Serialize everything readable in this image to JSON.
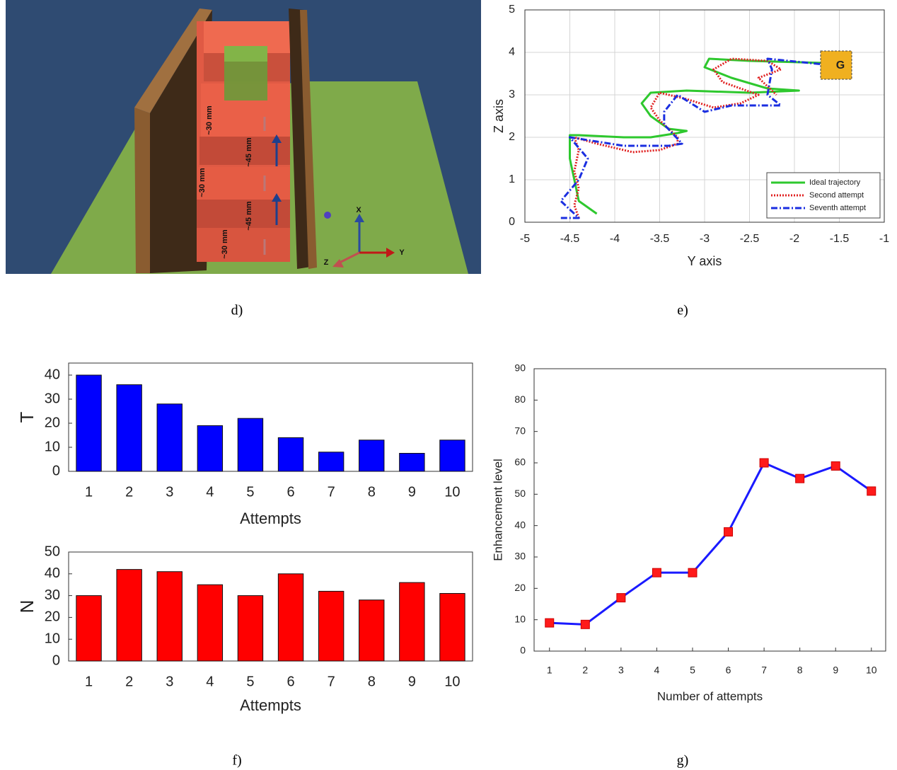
{
  "scene": {
    "dimension_labels": [
      "~30 mm",
      "~45 mm",
      "~30 mm",
      "~45 mm",
      "~30 mm"
    ],
    "axis_labels": [
      "X",
      "Y",
      "Z"
    ]
  },
  "captions": [
    "d)",
    "e)",
    "f)",
    "g)"
  ],
  "chart_data": [
    {
      "type": "line",
      "x_label": "Y axis",
      "y_label": "Z axis",
      "annotation": "G",
      "xlim": [
        -5,
        -1
      ],
      "xticks": [
        -5,
        -4.5,
        -4,
        -3.5,
        -3,
        -2.5,
        -2,
        -1.5,
        -1
      ],
      "ylim": [
        0,
        5
      ],
      "yticks": [
        0,
        1,
        2,
        3,
        4,
        5
      ],
      "grid": true,
      "legend": "lower-right",
      "series": [
        {
          "name": "Ideal trajectory",
          "color": "#2ec82e",
          "style": "solid",
          "x": [
            -4.2,
            -4.4,
            -4.45,
            -4.5,
            -4.5,
            -4.4,
            -3.9,
            -3.6,
            -3.3,
            -3.2,
            -3.4,
            -3.6,
            -3.7,
            -3.6,
            -3.2,
            -2.5,
            -1.95,
            -2.3,
            -2.7,
            -3.0,
            -2.95,
            -2.5,
            -1.65
          ],
          "values": [
            0.2,
            0.5,
            1,
            1.5,
            2.05,
            2.05,
            2.0,
            2.0,
            2.1,
            2.15,
            2.2,
            2.5,
            2.8,
            3.05,
            3.1,
            3.05,
            3.1,
            3.15,
            3.4,
            3.65,
            3.85,
            3.8,
            3.75
          ]
        },
        {
          "name": "Second attempt",
          "color": "#e02020",
          "style": "dotted",
          "x": [
            -4.4,
            -4.45,
            -4.4,
            -4.45,
            -4.4,
            -4.45,
            -4.2,
            -3.8,
            -3.5,
            -3.3,
            -3.3,
            -3.5,
            -3.6,
            -3.5,
            -3.2,
            -2.9,
            -2.6,
            -2.4,
            -2.8,
            -2.9,
            -2.7,
            -2.3,
            -2.15,
            -2.4,
            -2.2
          ],
          "values": [
            0.1,
            0.4,
            0.8,
            1.2,
            1.7,
            2.0,
            1.85,
            1.65,
            1.7,
            1.85,
            2.0,
            2.4,
            2.7,
            3.05,
            2.9,
            2.7,
            2.8,
            3.0,
            3.3,
            3.6,
            3.85,
            3.8,
            3.6,
            3.4,
            3.0
          ]
        },
        {
          "name": "Seventh attempt",
          "color": "#1a2ee0",
          "style": "dashdot",
          "x": [
            -4.6,
            -4.4,
            -4.6,
            -4.4,
            -4.3,
            -4.5,
            -4.2,
            -3.9,
            -3.4,
            -3.25,
            -3.45,
            -3.45,
            -3.3,
            -3.0,
            -2.7,
            -2.15,
            -2.3,
            -2.25,
            -2.3,
            -1.6
          ],
          "values": [
            0.1,
            0.1,
            0.5,
            1.0,
            1.5,
            2.0,
            1.9,
            1.8,
            1.8,
            1.85,
            2.3,
            2.6,
            3.0,
            2.6,
            2.75,
            2.75,
            3.0,
            3.6,
            3.85,
            3.7
          ]
        }
      ]
    },
    {
      "type": "bar",
      "x_label": "Attempts",
      "y_label": "T",
      "color": "#0000ff",
      "categories": [
        "1",
        "2",
        "3",
        "4",
        "5",
        "6",
        "7",
        "8",
        "9",
        "10"
      ],
      "values": [
        40,
        36,
        28,
        19,
        22,
        14,
        8,
        13,
        7.5,
        13
      ],
      "ylim": [
        0,
        45
      ],
      "yticks": [
        0,
        10,
        20,
        30,
        40
      ]
    },
    {
      "type": "bar",
      "x_label": "Attempts",
      "y_label": "N",
      "color": "#ff0000",
      "categories": [
        "1",
        "2",
        "3",
        "4",
        "5",
        "6",
        "7",
        "8",
        "9",
        "10"
      ],
      "values": [
        30,
        42,
        41,
        35,
        30,
        40,
        32,
        28,
        36,
        31
      ],
      "ylim": [
        0,
        50
      ],
      "yticks": [
        0,
        10,
        20,
        30,
        40,
        50
      ]
    },
    {
      "type": "line",
      "x_label": "Number of attempts",
      "y_label": "Enhancement level",
      "xlim": [
        0.57,
        10.4
      ],
      "xticks": [
        1,
        2,
        3,
        4,
        5,
        6,
        7,
        8,
        9,
        10
      ],
      "ylim": [
        0,
        90
      ],
      "yticks": [
        0,
        10,
        20,
        30,
        40,
        50,
        60,
        70,
        80,
        90
      ],
      "grid": false,
      "series": [
        {
          "color": "#1a1aff",
          "marker_color": "#ff1a1a",
          "style": "solid",
          "x": [
            1,
            2,
            3,
            4,
            5,
            6,
            7,
            8,
            9,
            10
          ],
          "values": [
            9,
            8.5,
            17,
            25,
            25,
            38,
            60,
            55,
            59,
            51
          ]
        }
      ]
    }
  ]
}
